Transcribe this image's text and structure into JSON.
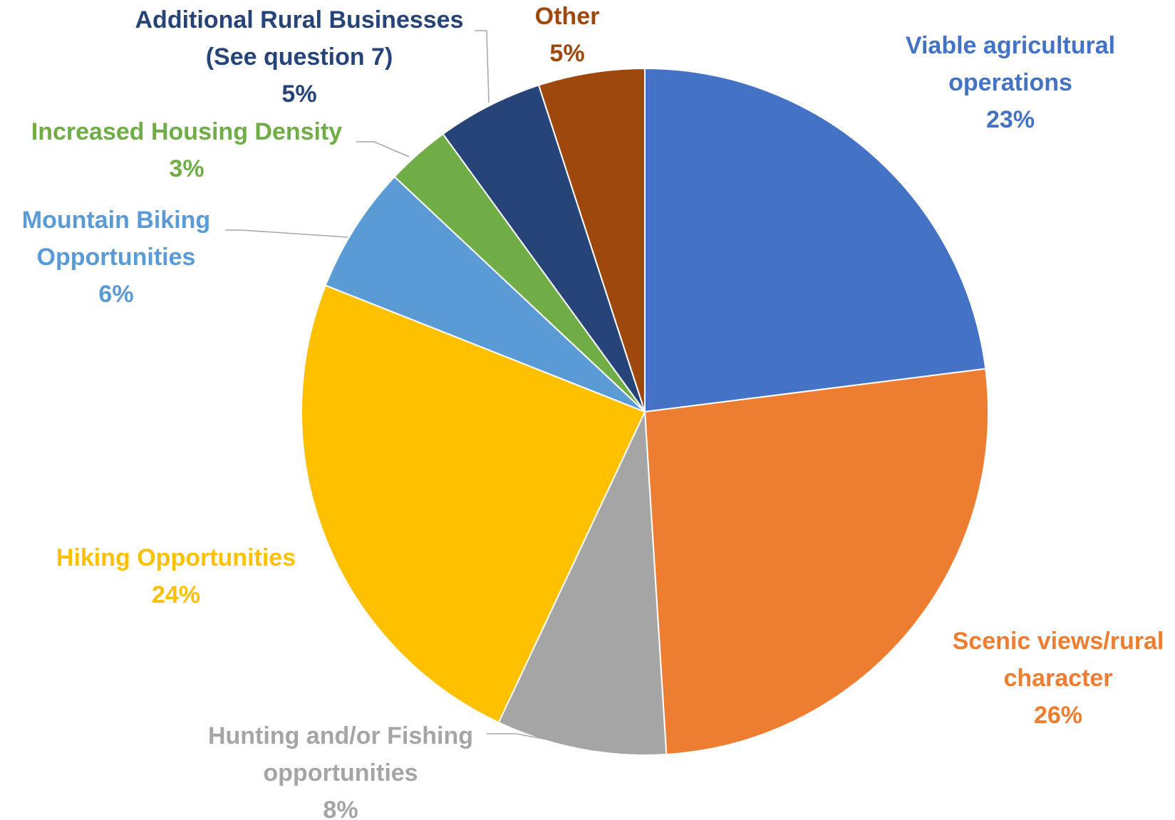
{
  "chart_data": {
    "type": "pie",
    "title": "",
    "start_angle_deg": 0,
    "direction": "clockwise",
    "slices": [
      {
        "lines": [
          "Viable agricultural",
          "operations"
        ],
        "pct_label": "23%",
        "value": 23,
        "color": "#4472C4"
      },
      {
        "lines": [
          "Scenic views/rural",
          "character"
        ],
        "pct_label": "26%",
        "value": 26,
        "color": "#ED7D31"
      },
      {
        "lines": [
          "Hunting and/or Fishing",
          "opportunities"
        ],
        "pct_label": "8%",
        "value": 8,
        "color": "#A5A5A5"
      },
      {
        "lines": [
          "Hiking Opportunities"
        ],
        "pct_label": "24%",
        "value": 24,
        "color": "#FFC000"
      },
      {
        "lines": [
          "Mountain Biking",
          "Opportunities"
        ],
        "pct_label": "6%",
        "value": 6,
        "color": "#5B9BD5"
      },
      {
        "lines": [
          "Increased Housing Density"
        ],
        "pct_label": "3%",
        "value": 3,
        "color": "#70AD47"
      },
      {
        "lines": [
          "Additional Rural Businesses",
          "(See question 7)"
        ],
        "pct_label": "5%",
        "value": 5,
        "color": "#264478"
      },
      {
        "lines": [
          "Other"
        ],
        "pct_label": "5%",
        "value": 5,
        "color": "#9E480E"
      }
    ]
  }
}
